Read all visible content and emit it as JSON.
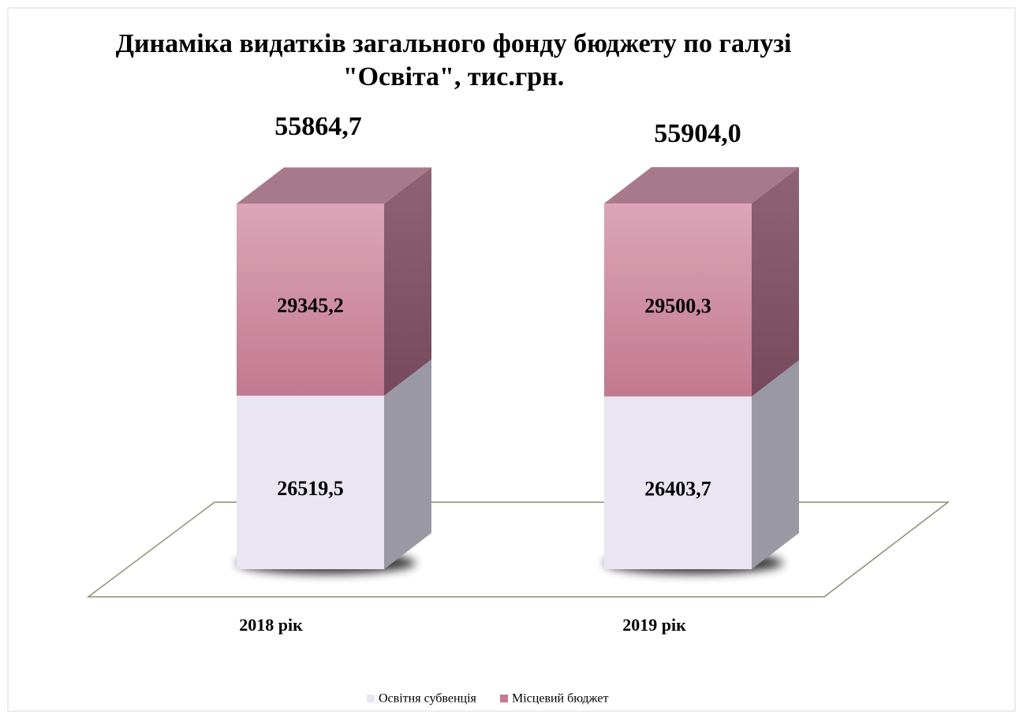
{
  "chart_data": {
    "type": "bar3d_stacked",
    "title": "Динаміка видатків загального фонду бюджету по галузі",
    "subtitle": "\"Освіта\", тис.грн.",
    "categories": [
      "2018 рік",
      "2019 рік"
    ],
    "series": [
      {
        "name": "Освітня субвенція",
        "color": "#e9e6f2",
        "values": [
          26519.5,
          26403.7
        ],
        "value_labels": [
          "26519,5",
          "26403,7"
        ]
      },
      {
        "name": "Місцевий бюджет",
        "color": "#d698ad",
        "values": [
          29345.2,
          29500.3
        ],
        "value_labels": [
          "29345,2",
          "29500,3"
        ]
      }
    ],
    "totals": {
      "values": [
        55864.7,
        55904.0
      ],
      "value_labels": [
        "55864,7",
        "55904,0"
      ]
    },
    "legend": "bottom"
  }
}
